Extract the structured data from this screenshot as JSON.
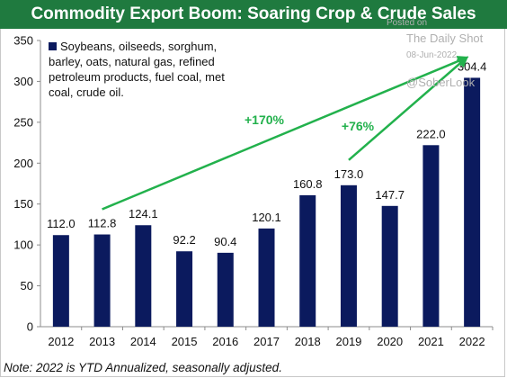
{
  "title": "Commodity Export Boom: Soaring Crop & Crude Sales",
  "note": "Note: 2022 is YTD Annualized, seasonally adjusted.",
  "watermark": {
    "posted_on": "Posted on",
    "source": "The Daily Shot",
    "date": "08-Jun-2022",
    "handle": "@SoberLook"
  },
  "colors": {
    "title_bg": "#1f7a3f",
    "bar": "#0b1a5e",
    "arrow": "#22b14c"
  },
  "chart_data": {
    "type": "bar",
    "categories": [
      "2012",
      "2013",
      "2014",
      "2015",
      "2016",
      "2017",
      "2018",
      "2019",
      "2020",
      "2021",
      "2022"
    ],
    "series": [
      {
        "name": "Soybeans, oilseeds, sorghum, barley, oats, natural gas, refined petroleum products, fuel coal, met coal, crude oil.",
        "values": [
          112.0,
          112.8,
          124.1,
          92.2,
          90.4,
          120.1,
          160.8,
          173.0,
          147.7,
          222.0,
          304.4
        ]
      }
    ],
    "data_labels": [
      "112.0",
      "112.8",
      "124.1",
      "92.2",
      "90.4",
      "120.1",
      "160.8",
      "173.0",
      "147.7",
      "222.0",
      "304.4"
    ],
    "ylim": [
      0,
      350
    ],
    "yticks": [
      0,
      50,
      100,
      150,
      200,
      250,
      300,
      350
    ],
    "grid": false,
    "legend_position": "top-left",
    "annotations": [
      {
        "text": "+170%",
        "from": "2013",
        "to": "2022"
      },
      {
        "text": "+76%",
        "from": "2019",
        "to": "2022"
      }
    ]
  }
}
